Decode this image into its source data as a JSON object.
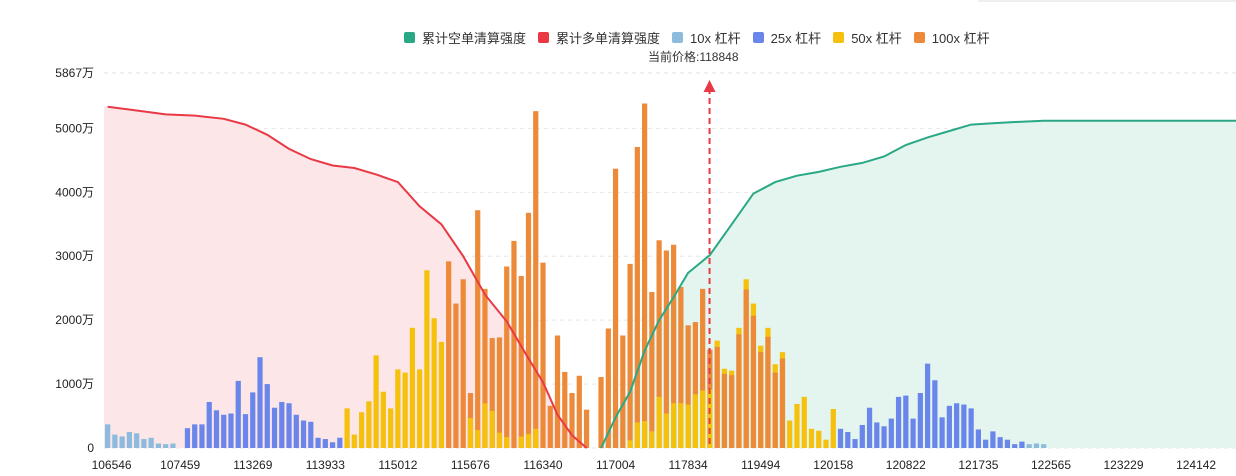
{
  "legend": [
    {
      "key": "short",
      "label": "累计空单清算强度",
      "color": "#2aa886"
    },
    {
      "key": "long",
      "label": "累计多单清算强度",
      "color": "#e83945"
    },
    {
      "key": "lev10",
      "label": "10x 杠杆",
      "color": "#8cbbdd"
    },
    {
      "key": "lev25",
      "label": "25x 杠杆",
      "color": "#6a86ea"
    },
    {
      "key": "lev50",
      "label": "50x 杠杆",
      "color": "#f5c10d"
    },
    {
      "key": "lev100",
      "label": "100x 杠杆",
      "color": "#ec8a3a"
    }
  ],
  "current_price": {
    "label": "当前价格:118848",
    "value": 118848
  },
  "chart_data": {
    "type": "bar",
    "unit": "万",
    "ylim": [
      0,
      5867
    ],
    "y_ticks": [
      {
        "value": 0,
        "label": "0"
      },
      {
        "value": 1000,
        "label": "1000万"
      },
      {
        "value": 2000,
        "label": "2000万"
      },
      {
        "value": 3000,
        "label": "3000万"
      },
      {
        "value": 4000,
        "label": "4000万"
      },
      {
        "value": 5000,
        "label": "5000万"
      },
      {
        "value": 5867,
        "label": "5867万"
      }
    ],
    "x_tick_labels": [
      "106546",
      "107459",
      "113269",
      "113933",
      "115012",
      "115676",
      "116340",
      "117004",
      "117834",
      "119494",
      "120158",
      "120822",
      "121735",
      "122565",
      "123229",
      "124142"
    ],
    "x_tick_bins": [
      0,
      10,
      20,
      30,
      40,
      50,
      60,
      70,
      80,
      90,
      100,
      110,
      120,
      130,
      140,
      150
    ],
    "bins": 156,
    "current_price_bin": 84,
    "colors": {
      "lev10": "#8cbbdd",
      "lev25": "#6a86ea",
      "lev50": "#f5c10d",
      "lev100": "#ec8a3a",
      "long": "#e83945",
      "short": "#2aa886",
      "long_fill": "#fce6e8",
      "short_fill": "#e3f5ee"
    },
    "bars": [
      {
        "bin": 0,
        "lev": "lev10",
        "value": 370
      },
      {
        "bin": 1,
        "lev": "lev10",
        "value": 210
      },
      {
        "bin": 2,
        "lev": "lev10",
        "value": 180
      },
      {
        "bin": 3,
        "lev": "lev10",
        "value": 250
      },
      {
        "bin": 4,
        "lev": "lev10",
        "value": 230
      },
      {
        "bin": 5,
        "lev": "lev10",
        "value": 140
      },
      {
        "bin": 6,
        "lev": "lev10",
        "value": 160
      },
      {
        "bin": 7,
        "lev": "lev10",
        "value": 70
      },
      {
        "bin": 8,
        "lev": "lev10",
        "value": 60
      },
      {
        "bin": 9,
        "lev": "lev10",
        "value": 70
      },
      {
        "bin": 11,
        "lev": "lev25",
        "value": 310
      },
      {
        "bin": 12,
        "lev": "lev25",
        "value": 370
      },
      {
        "bin": 13,
        "lev": "lev25",
        "value": 370
      },
      {
        "bin": 14,
        "lev": "lev25",
        "value": 720
      },
      {
        "bin": 15,
        "lev": "lev25",
        "value": 590
      },
      {
        "bin": 16,
        "lev": "lev25",
        "value": 520
      },
      {
        "bin": 17,
        "lev": "lev25",
        "value": 540
      },
      {
        "bin": 18,
        "lev": "lev25",
        "value": 1050
      },
      {
        "bin": 19,
        "lev": "lev25",
        "value": 530
      },
      {
        "bin": 20,
        "lev": "lev25",
        "value": 870
      },
      {
        "bin": 21,
        "lev": "lev25",
        "value": 1420
      },
      {
        "bin": 22,
        "lev": "lev25",
        "value": 1000
      },
      {
        "bin": 23,
        "lev": "lev25",
        "value": 630
      },
      {
        "bin": 24,
        "lev": "lev25",
        "value": 720
      },
      {
        "bin": 25,
        "lev": "lev25",
        "value": 700
      },
      {
        "bin": 26,
        "lev": "lev25",
        "value": 520
      },
      {
        "bin": 27,
        "lev": "lev25",
        "value": 430
      },
      {
        "bin": 28,
        "lev": "lev25",
        "value": 410
      },
      {
        "bin": 29,
        "lev": "lev25",
        "value": 160
      },
      {
        "bin": 30,
        "lev": "lev25",
        "value": 140
      },
      {
        "bin": 31,
        "lev": "lev25",
        "value": 90
      },
      {
        "bin": 32,
        "lev": "lev25",
        "value": 160
      },
      {
        "bin": 33,
        "lev": "lev50",
        "value": 620
      },
      {
        "bin": 34,
        "lev": "lev50",
        "value": 210
      },
      {
        "bin": 35,
        "lev": "lev50",
        "value": 560
      },
      {
        "bin": 36,
        "lev": "lev50",
        "value": 730
      },
      {
        "bin": 37,
        "lev": "lev50",
        "value": 1450
      },
      {
        "bin": 38,
        "lev": "lev50",
        "value": 880
      },
      {
        "bin": 39,
        "lev": "lev50",
        "value": 620
      },
      {
        "bin": 40,
        "lev": "lev50",
        "value": 1230
      },
      {
        "bin": 41,
        "lev": "lev50",
        "value": 1180
      },
      {
        "bin": 42,
        "lev": "lev50",
        "value": 1880
      },
      {
        "bin": 43,
        "lev": "lev50",
        "value": 1230
      },
      {
        "bin": 44,
        "lev": "lev50",
        "value": 2780
      },
      {
        "bin": 45,
        "lev": "lev50",
        "value": 2030
      },
      {
        "bin": 46,
        "lev": "lev50",
        "value": 1660
      },
      {
        "bin": 47,
        "lev": "lev100",
        "value": 2920
      },
      {
        "bin": 48,
        "lev": "lev100",
        "value": 2260
      },
      {
        "bin": 49,
        "lev": "lev100",
        "value": 2640
      },
      {
        "bin": 50,
        "lev": "lev100",
        "value": 860
      },
      {
        "bin": 51,
        "lev": "lev100",
        "value": 3720
      },
      {
        "bin": 52,
        "lev": "lev100",
        "value": 2490
      },
      {
        "bin": 53,
        "lev": "lev100",
        "value": 1720
      },
      {
        "bin": 54,
        "lev": "lev100",
        "value": 1730
      },
      {
        "bin": 55,
        "lev": "lev100",
        "value": 2840
      },
      {
        "bin": 56,
        "lev": "lev100",
        "value": 3240
      },
      {
        "bin": 57,
        "lev": "lev100",
        "value": 2690
      },
      {
        "bin": 58,
        "lev": "lev100",
        "value": 3680
      },
      {
        "bin": 59,
        "lev": "lev100",
        "value": 5270
      },
      {
        "bin": 60,
        "lev": "lev100",
        "value": 2900
      },
      {
        "bin": 61,
        "lev": "lev100",
        "value": 660
      },
      {
        "bin": 62,
        "lev": "lev100",
        "value": 1760
      },
      {
        "bin": 63,
        "lev": "lev100",
        "value": 1190
      },
      {
        "bin": 64,
        "lev": "lev100",
        "value": 860
      },
      {
        "bin": 65,
        "lev": "lev100",
        "value": 1130
      },
      {
        "bin": 66,
        "lev": "lev100",
        "value": 600
      },
      {
        "bin": 68,
        "lev": "lev100",
        "value": 1110
      },
      {
        "bin": 69,
        "lev": "lev100",
        "value": 1870
      },
      {
        "bin": 70,
        "lev": "lev100",
        "value": 4370
      },
      {
        "bin": 71,
        "lev": "lev100",
        "value": 1760
      },
      {
        "bin": 72,
        "lev": "lev100",
        "value": 2880
      },
      {
        "bin": 73,
        "lev": "lev100",
        "value": 4710
      },
      {
        "bin": 74,
        "lev": "lev100",
        "value": 5390
      },
      {
        "bin": 75,
        "lev": "lev100",
        "value": 2440
      },
      {
        "bin": 76,
        "lev": "lev100",
        "value": 3250
      },
      {
        "bin": 77,
        "lev": "lev100",
        "value": 3090
      },
      {
        "bin": 78,
        "lev": "lev100",
        "value": 3180
      },
      {
        "bin": 79,
        "lev": "lev100",
        "value": 2520
      },
      {
        "bin": 80,
        "lev": "lev100",
        "value": 1920
      },
      {
        "bin": 81,
        "lev": "lev100",
        "value": 1970
      },
      {
        "bin": 82,
        "lev": "lev100",
        "value": 2490
      },
      {
        "bin": 83,
        "lev": "lev100",
        "value": 1540
      },
      {
        "bin": 84,
        "lev": "lev50",
        "value": 1680
      },
      {
        "bin": 85,
        "lev": "lev50",
        "value": 1240
      },
      {
        "bin": 86,
        "lev": "lev50",
        "value": 1210
      },
      {
        "bin": 87,
        "lev": "lev50",
        "value": 1880
      },
      {
        "bin": 88,
        "lev": "lev50",
        "value": 2640
      },
      {
        "bin": 89,
        "lev": "lev50",
        "value": 2260
      },
      {
        "bin": 90,
        "lev": "lev50",
        "value": 1600
      },
      {
        "bin": 91,
        "lev": "lev50",
        "value": 1880
      },
      {
        "bin": 92,
        "lev": "lev50",
        "value": 1310
      },
      {
        "bin": 93,
        "lev": "lev50",
        "value": 1500
      },
      {
        "bin": 94,
        "lev": "lev50",
        "value": 430
      },
      {
        "bin": 95,
        "lev": "lev50",
        "value": 690
      },
      {
        "bin": 96,
        "lev": "lev50",
        "value": 800
      },
      {
        "bin": 97,
        "lev": "lev50",
        "value": 300
      },
      {
        "bin": 98,
        "lev": "lev50",
        "value": 270
      },
      {
        "bin": 99,
        "lev": "lev50",
        "value": 130
      },
      {
        "bin": 100,
        "lev": "lev50",
        "value": 610
      },
      {
        "bin": 101,
        "lev": "lev25",
        "value": 300
      },
      {
        "bin": 102,
        "lev": "lev25",
        "value": 250
      },
      {
        "bin": 103,
        "lev": "lev25",
        "value": 140
      },
      {
        "bin": 104,
        "lev": "lev25",
        "value": 360
      },
      {
        "bin": 105,
        "lev": "lev25",
        "value": 630
      },
      {
        "bin": 106,
        "lev": "lev25",
        "value": 400
      },
      {
        "bin": 107,
        "lev": "lev25",
        "value": 340
      },
      {
        "bin": 108,
        "lev": "lev25",
        "value": 460
      },
      {
        "bin": 109,
        "lev": "lev25",
        "value": 800
      },
      {
        "bin": 110,
        "lev": "lev25",
        "value": 820
      },
      {
        "bin": 111,
        "lev": "lev25",
        "value": 460
      },
      {
        "bin": 112,
        "lev": "lev25",
        "value": 860
      },
      {
        "bin": 113,
        "lev": "lev25",
        "value": 1320
      },
      {
        "bin": 114,
        "lev": "lev25",
        "value": 1060
      },
      {
        "bin": 115,
        "lev": "lev25",
        "value": 480
      },
      {
        "bin": 116,
        "lev": "lev25",
        "value": 660
      },
      {
        "bin": 117,
        "lev": "lev25",
        "value": 700
      },
      {
        "bin": 118,
        "lev": "lev25",
        "value": 680
      },
      {
        "bin": 119,
        "lev": "lev25",
        "value": 620
      },
      {
        "bin": 120,
        "lev": "lev25",
        "value": 290
      },
      {
        "bin": 121,
        "lev": "lev25",
        "value": 130
      },
      {
        "bin": 122,
        "lev": "lev25",
        "value": 260
      },
      {
        "bin": 123,
        "lev": "lev25",
        "value": 170
      },
      {
        "bin": 124,
        "lev": "lev25",
        "value": 130
      },
      {
        "bin": 125,
        "lev": "lev25",
        "value": 60
      },
      {
        "bin": 126,
        "lev": "lev25",
        "value": 100
      },
      {
        "bin": 127,
        "lev": "lev10",
        "value": 60
      },
      {
        "bin": 128,
        "lev": "lev10",
        "value": 70
      },
      {
        "bin": 129,
        "lev": "lev10",
        "value": 60
      }
    ],
    "overlay_50": [
      {
        "bin": 50,
        "value": 470
      },
      {
        "bin": 51,
        "value": 280
      },
      {
        "bin": 52,
        "value": 700
      },
      {
        "bin": 53,
        "value": 580
      },
      {
        "bin": 54,
        "value": 240
      },
      {
        "bin": 55,
        "value": 170
      },
      {
        "bin": 57,
        "value": 180
      },
      {
        "bin": 58,
        "value": 220
      },
      {
        "bin": 59,
        "value": 300
      },
      {
        "bin": 72,
        "value": 120
      },
      {
        "bin": 73,
        "value": 400
      },
      {
        "bin": 74,
        "value": 420
      },
      {
        "bin": 75,
        "value": 260
      },
      {
        "bin": 76,
        "value": 800
      },
      {
        "bin": 77,
        "value": 540
      },
      {
        "bin": 78,
        "value": 700
      },
      {
        "bin": 79,
        "value": 700
      },
      {
        "bin": 80,
        "value": 680
      },
      {
        "bin": 81,
        "value": 840
      },
      {
        "bin": 82,
        "value": 900
      },
      {
        "bin": 83,
        "value": 920
      }
    ],
    "overlay_100": [
      {
        "bin": 84,
        "value": 1580
      },
      {
        "bin": 85,
        "value": 1160
      },
      {
        "bin": 86,
        "value": 1140
      },
      {
        "bin": 87,
        "value": 1780
      },
      {
        "bin": 88,
        "value": 2480
      },
      {
        "bin": 89,
        "value": 2070
      },
      {
        "bin": 90,
        "value": 1500
      },
      {
        "bin": 91,
        "value": 1740
      },
      {
        "bin": 92,
        "value": 1180
      },
      {
        "bin": 93,
        "value": 1400
      }
    ],
    "long_curve": [
      {
        "bin": 0,
        "value": 5340
      },
      {
        "bin": 4,
        "value": 5280
      },
      {
        "bin": 8,
        "value": 5220
      },
      {
        "bin": 12,
        "value": 5200
      },
      {
        "bin": 16,
        "value": 5150
      },
      {
        "bin": 19,
        "value": 5060
      },
      {
        "bin": 22,
        "value": 4900
      },
      {
        "bin": 25,
        "value": 4680
      },
      {
        "bin": 28,
        "value": 4520
      },
      {
        "bin": 31,
        "value": 4420
      },
      {
        "bin": 34,
        "value": 4380
      },
      {
        "bin": 37,
        "value": 4280
      },
      {
        "bin": 40,
        "value": 4160
      },
      {
        "bin": 43,
        "value": 3780
      },
      {
        "bin": 46,
        "value": 3500
      },
      {
        "bin": 49,
        "value": 3000
      },
      {
        "bin": 52,
        "value": 2400
      },
      {
        "bin": 55,
        "value": 1980
      },
      {
        "bin": 58,
        "value": 1400
      },
      {
        "bin": 60,
        "value": 1030
      },
      {
        "bin": 62,
        "value": 520
      },
      {
        "bin": 64,
        "value": 200
      },
      {
        "bin": 66,
        "value": 0
      }
    ],
    "short_curve": [
      {
        "bin": 68,
        "value": 0
      },
      {
        "bin": 70,
        "value": 480
      },
      {
        "bin": 72,
        "value": 880
      },
      {
        "bin": 74,
        "value": 1520
      },
      {
        "bin": 76,
        "value": 2000
      },
      {
        "bin": 78,
        "value": 2360
      },
      {
        "bin": 80,
        "value": 2740
      },
      {
        "bin": 83,
        "value": 3020
      },
      {
        "bin": 86,
        "value": 3500
      },
      {
        "bin": 89,
        "value": 3980
      },
      {
        "bin": 92,
        "value": 4160
      },
      {
        "bin": 95,
        "value": 4260
      },
      {
        "bin": 98,
        "value": 4320
      },
      {
        "bin": 101,
        "value": 4400
      },
      {
        "bin": 104,
        "value": 4460
      },
      {
        "bin": 107,
        "value": 4560
      },
      {
        "bin": 110,
        "value": 4740
      },
      {
        "bin": 113,
        "value": 4860
      },
      {
        "bin": 116,
        "value": 4960
      },
      {
        "bin": 119,
        "value": 5060
      },
      {
        "bin": 122,
        "value": 5080
      },
      {
        "bin": 125,
        "value": 5100
      },
      {
        "bin": 129,
        "value": 5120
      }
    ]
  }
}
